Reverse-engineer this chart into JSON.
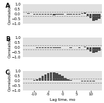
{
  "panels": [
    "A",
    "B",
    "C"
  ],
  "lags": [
    -13,
    -12,
    -11,
    -10,
    -9,
    -8,
    -7,
    -6,
    -5,
    -4,
    -3,
    -2,
    -1,
    0,
    1,
    2,
    3,
    4,
    5,
    6,
    7,
    8,
    9,
    10,
    11,
    12,
    13
  ],
  "corr_A": [
    0.03,
    0.04,
    0.03,
    -0.04,
    -0.08,
    -0.1,
    -0.1,
    -0.09,
    -0.05,
    -0.09,
    -0.11,
    -0.09,
    -0.06,
    -0.04,
    -0.02,
    -0.04,
    -0.07,
    -0.09,
    -0.04,
    -0.07,
    0.08,
    0.18,
    -0.2,
    -0.45,
    -0.68,
    -0.6,
    -0.48
  ],
  "corr_B": [
    0.01,
    0.02,
    0.01,
    -0.02,
    -0.04,
    -0.07,
    -0.09,
    -0.07,
    -0.04,
    -0.07,
    -0.1,
    -0.07,
    -0.04,
    -0.02,
    -0.01,
    -0.02,
    -0.04,
    -0.02,
    -0.01,
    -0.04,
    0.04,
    0.08,
    -0.18,
    -0.42,
    -0.58,
    -0.5,
    -0.35
  ],
  "corr_C": [
    0.01,
    0.02,
    0.04,
    0.06,
    0.12,
    0.28,
    0.48,
    0.68,
    0.82,
    0.88,
    0.85,
    0.78,
    0.62,
    0.48,
    0.32,
    0.18,
    0.08,
    0.04,
    0.01,
    -0.02,
    -0.04,
    -0.07,
    -0.09,
    -0.07,
    -0.04,
    -0.02,
    -0.01
  ],
  "significance": 0.2,
  "ylabel": "Correlation",
  "xlabel": "Lag time, mo",
  "xlim": [
    -14,
    14
  ],
  "ylim": [
    -1.0,
    1.0
  ],
  "yticks": [
    -1.0,
    -0.5,
    0.0,
    0.5,
    1.0
  ],
  "xticks": [
    -10,
    -5,
    0,
    5,
    10
  ],
  "xtick_labels": [
    "-10",
    "-5",
    "0",
    "5",
    "10"
  ],
  "bar_color": "#4a4a4a",
  "bg_color": "#e0e0e0",
  "panel_label_fontsize": 6,
  "axis_label_fontsize": 4,
  "tick_fontsize": 4
}
